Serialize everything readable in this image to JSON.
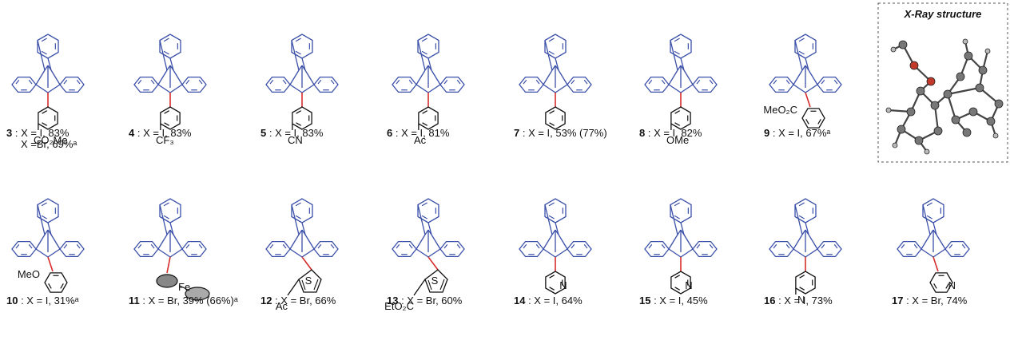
{
  "colors": {
    "scaffold": "#3a4fa8",
    "bond": "#d62c2c",
    "ink": "#111111",
    "xray_frame": "#555555"
  },
  "xray": {
    "title": "X-Ray structure"
  },
  "compounds": [
    {
      "id": "3",
      "sub_lines": [
        "CO₂Me"
      ],
      "lines": [
        {
          "num": "3",
          "text": " : X = I,  83%"
        },
        {
          "num": "",
          "text": "X =Br, 69%ᵃ"
        }
      ]
    },
    {
      "id": "4",
      "sub_lines": [
        "CF₃"
      ],
      "lines": [
        {
          "num": "4",
          "text": " : X = I,  83%"
        }
      ]
    },
    {
      "id": "5",
      "sub_lines": [
        "CN"
      ],
      "lines": [
        {
          "num": "5",
          "text": " : X = I,  83%"
        }
      ]
    },
    {
      "id": "6",
      "sub_lines": [
        "Ac"
      ],
      "lines": [
        {
          "num": "6",
          "text": " : X = I,  81%"
        }
      ]
    },
    {
      "id": "7",
      "sub_lines": [],
      "lines": [
        {
          "num": "7",
          "text": " : X = I,  53% (77%)"
        }
      ]
    },
    {
      "id": "8",
      "sub_lines": [
        "OMe"
      ],
      "lines": [
        {
          "num": "8",
          "text": " : X = I,  82%"
        }
      ]
    },
    {
      "id": "9",
      "sub_lines": [
        "MeO₂C"
      ],
      "lines": [
        {
          "num": "9",
          "text": " : X = I,  67%ᵃ"
        }
      ]
    },
    {
      "id": "10",
      "sub_lines": [
        "MeO"
      ],
      "lines": [
        {
          "num": "10",
          "text": " : X = I,  31%ᵃ"
        }
      ]
    },
    {
      "id": "11",
      "sub_lines": [
        "Fe"
      ],
      "lines": [
        {
          "num": "11",
          "text": " : X = Br,  39% (66%)ᵃ"
        }
      ]
    },
    {
      "id": "12",
      "sub_lines": [
        "S",
        "Ac"
      ],
      "lines": [
        {
          "num": "12",
          "text": " : X = Br,  66%"
        }
      ]
    },
    {
      "id": "13",
      "sub_lines": [
        "S",
        "EtO₂C"
      ],
      "lines": [
        {
          "num": "13",
          "text": " : X = Br,  60%"
        }
      ]
    },
    {
      "id": "14",
      "sub_lines": [
        "N"
      ],
      "lines": [
        {
          "num": "14",
          "text": " : X = I,  64%"
        }
      ]
    },
    {
      "id": "15",
      "sub_lines": [
        "N"
      ],
      "lines": [
        {
          "num": "15",
          "text": " : X = I,  45%"
        }
      ]
    },
    {
      "id": "16",
      "sub_lines": [
        "N"
      ],
      "lines": [
        {
          "num": "16",
          "text": " : X = I,  73%"
        }
      ]
    },
    {
      "id": "17",
      "sub_lines": [
        "N"
      ],
      "lines": [
        {
          "num": "17",
          "text": " : X = Br,  74%"
        }
      ]
    }
  ]
}
